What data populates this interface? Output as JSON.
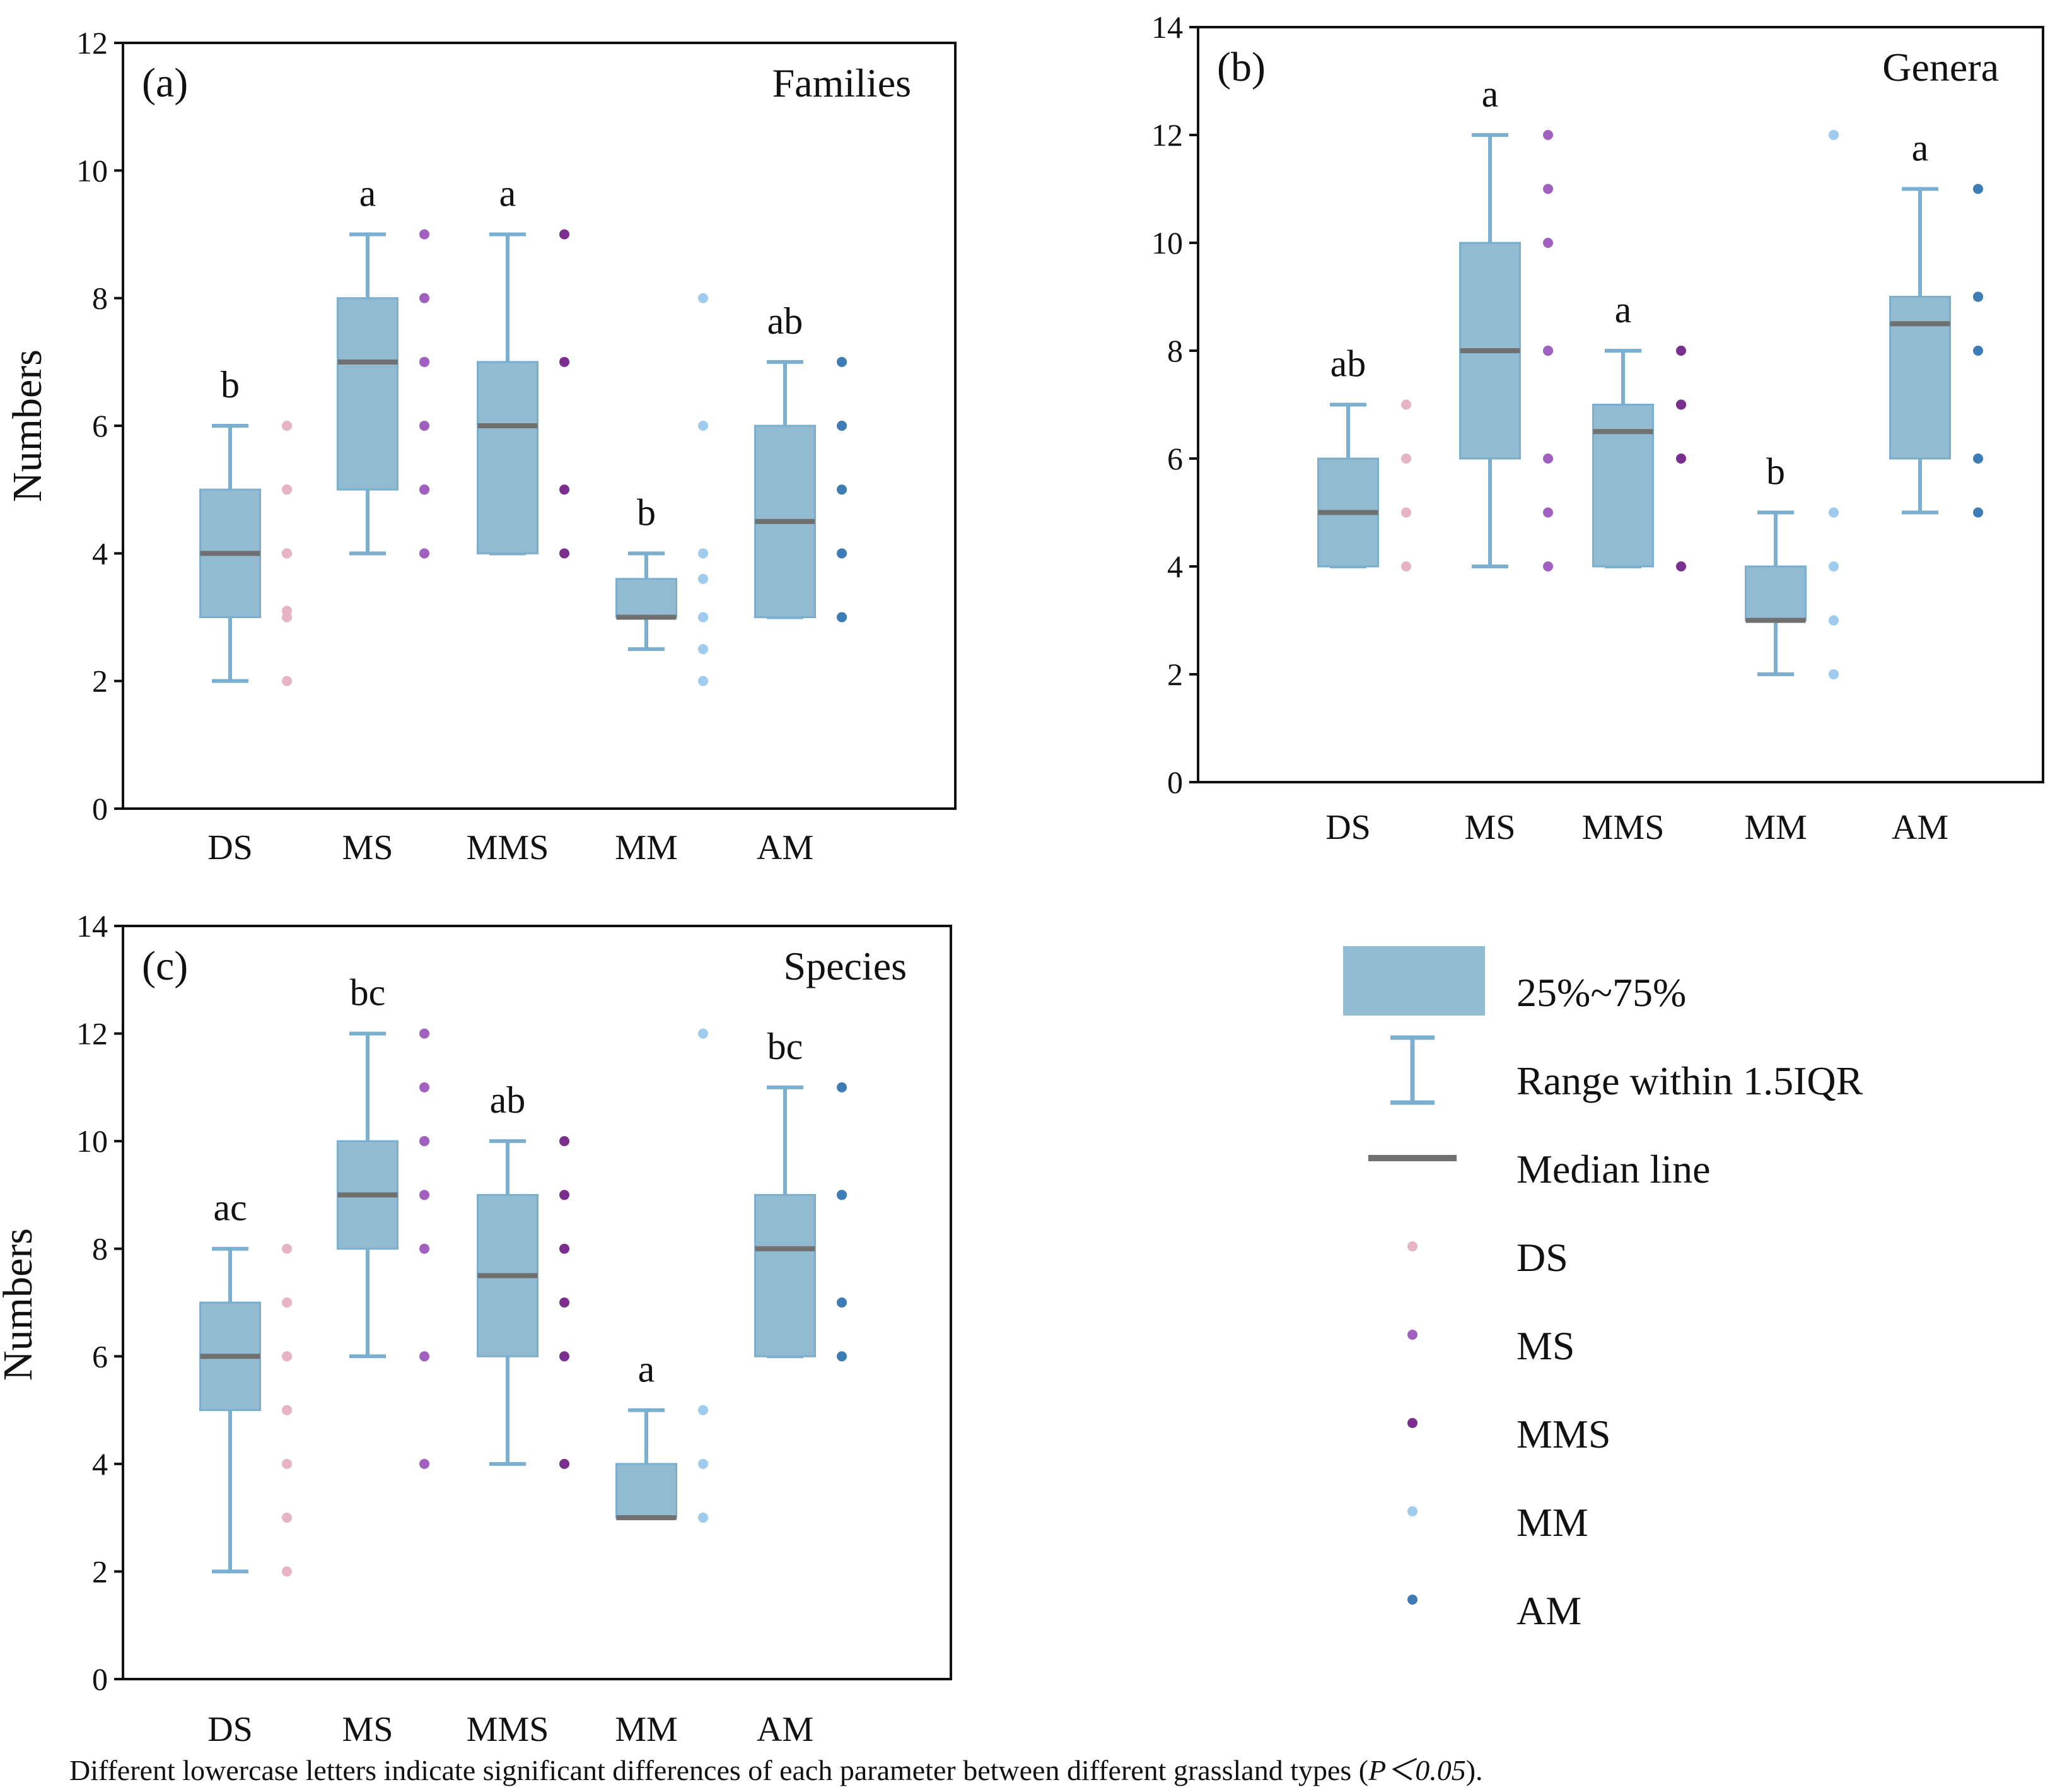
{
  "colors": {
    "box": "#92bbd2",
    "whisker": "#7aafcf",
    "median": "#707070",
    "axis": "#111111",
    "DS": "#e6b4c4",
    "MS": "#a060c0",
    "MMS": "#7a2e8e",
    "MM": "#9ecbee",
    "AM": "#3e7cb6"
  },
  "legend": {
    "box_label": "25%~75%",
    "whisker_label": "Range within 1.5IQR",
    "median_label": "Median line",
    "point_labels": [
      "DS",
      "MS",
      "MMS",
      "MM",
      "AM"
    ]
  },
  "footnote": {
    "main": "Different lowercase letters indicate significant differences of each parameter between different grassland types (",
    "italic": "P＜0.05",
    "end": ")."
  },
  "chart_data": [
    {
      "type": "box",
      "panel_label": "(a)",
      "title": "Families",
      "ylabel": "Numbers",
      "ylim": [
        0,
        12
      ],
      "yticks": [
        "0",
        "2",
        "4",
        "6",
        "8",
        "10",
        "12"
      ],
      "categories": [
        "DS",
        "MS",
        "MMS",
        "MM",
        "AM"
      ],
      "boxes": [
        {
          "q1": 3,
          "median": 4,
          "q3": 5,
          "whisker_low": 2,
          "whisker_high": 6,
          "letter": "b",
          "points": [
            6,
            5,
            5,
            4,
            4,
            4,
            3,
            3,
            3.1,
            2
          ]
        },
        {
          "q1": 5,
          "median": 7,
          "q3": 8,
          "whisker_low": 4,
          "whisker_high": 9,
          "letter": "a",
          "points": [
            9,
            8,
            7,
            7,
            6,
            5,
            5,
            4
          ]
        },
        {
          "q1": 4,
          "median": 6,
          "q3": 7,
          "whisker_low": 4,
          "whisker_high": 9,
          "letter": "a",
          "points": [
            9,
            7,
            5,
            4
          ]
        },
        {
          "q1": 3,
          "median": 3,
          "q3": 3.6,
          "whisker_low": 2.5,
          "whisker_high": 4,
          "letter": "b",
          "points": [
            8,
            6,
            4,
            3.6,
            3,
            3,
            3,
            2.5,
            2
          ]
        },
        {
          "q1": 3,
          "median": 4.5,
          "q3": 6,
          "whisker_low": 3,
          "whisker_high": 7,
          "letter": "ab",
          "points": [
            7,
            6,
            5,
            4,
            3,
            3
          ]
        }
      ]
    },
    {
      "type": "box",
      "panel_label": "(b)",
      "title": "Genera",
      "ylabel": "",
      "ylim": [
        0,
        14
      ],
      "yticks": [
        "0",
        "2",
        "4",
        "6",
        "8",
        "10",
        "12",
        "14"
      ],
      "categories": [
        "DS",
        "MS",
        "MMS",
        "MM",
        "AM"
      ],
      "boxes": [
        {
          "q1": 4,
          "median": 5,
          "q3": 6,
          "whisker_low": 4,
          "whisker_high": 7,
          "letter": "ab",
          "points": [
            7,
            6,
            6,
            5,
            5,
            4,
            4
          ]
        },
        {
          "q1": 6,
          "median": 8,
          "q3": 10,
          "whisker_low": 4,
          "whisker_high": 12,
          "letter": "a",
          "points": [
            12,
            11,
            10,
            8,
            8,
            6,
            5,
            4
          ]
        },
        {
          "q1": 4,
          "median": 6.5,
          "q3": 7,
          "whisker_low": 4,
          "whisker_high": 8,
          "letter": "a",
          "points": [
            8,
            7,
            7,
            6,
            4
          ]
        },
        {
          "q1": 3,
          "median": 3,
          "q3": 4,
          "whisker_low": 2,
          "whisker_high": 5,
          "letter": "b",
          "points": [
            12,
            12,
            5,
            4,
            3,
            3,
            2,
            2
          ]
        },
        {
          "q1": 6,
          "median": 8.5,
          "q3": 9,
          "whisker_low": 5,
          "whisker_high": 11,
          "letter": "a",
          "points": [
            11,
            9,
            9,
            8,
            6,
            5
          ]
        }
      ]
    },
    {
      "type": "box",
      "panel_label": "(c)",
      "title": "Species",
      "ylabel": "Numbers",
      "ylim": [
        0,
        14
      ],
      "yticks": [
        "0",
        "2",
        "4",
        "6",
        "8",
        "10",
        "12",
        "14"
      ],
      "categories": [
        "DS",
        "MS",
        "MMS",
        "MM",
        "AM"
      ],
      "boxes": [
        {
          "q1": 5,
          "median": 6,
          "q3": 7,
          "whisker_low": 2,
          "whisker_high": 8,
          "letter": "ac",
          "points": [
            8,
            7,
            7,
            6,
            6,
            5,
            5,
            4,
            3,
            2
          ]
        },
        {
          "q1": 8,
          "median": 9,
          "q3": 10,
          "whisker_low": 6,
          "whisker_high": 12,
          "letter": "bc",
          "points": [
            12,
            11,
            10,
            10,
            9,
            8,
            6,
            4
          ]
        },
        {
          "q1": 6,
          "median": 7.5,
          "q3": 9,
          "whisker_low": 4,
          "whisker_high": 10,
          "letter": "ab",
          "points": [
            10,
            9,
            8,
            7,
            6,
            4
          ]
        },
        {
          "q1": 3,
          "median": 3,
          "q3": 4,
          "whisker_low": 3,
          "whisker_high": 5,
          "letter": "a",
          "points": [
            12,
            5,
            4,
            3,
            3
          ]
        },
        {
          "q1": 6,
          "median": 8,
          "q3": 9,
          "whisker_low": 6,
          "whisker_high": 11,
          "letter": "bc",
          "points": [
            11,
            9,
            9,
            7,
            6
          ]
        }
      ]
    }
  ]
}
